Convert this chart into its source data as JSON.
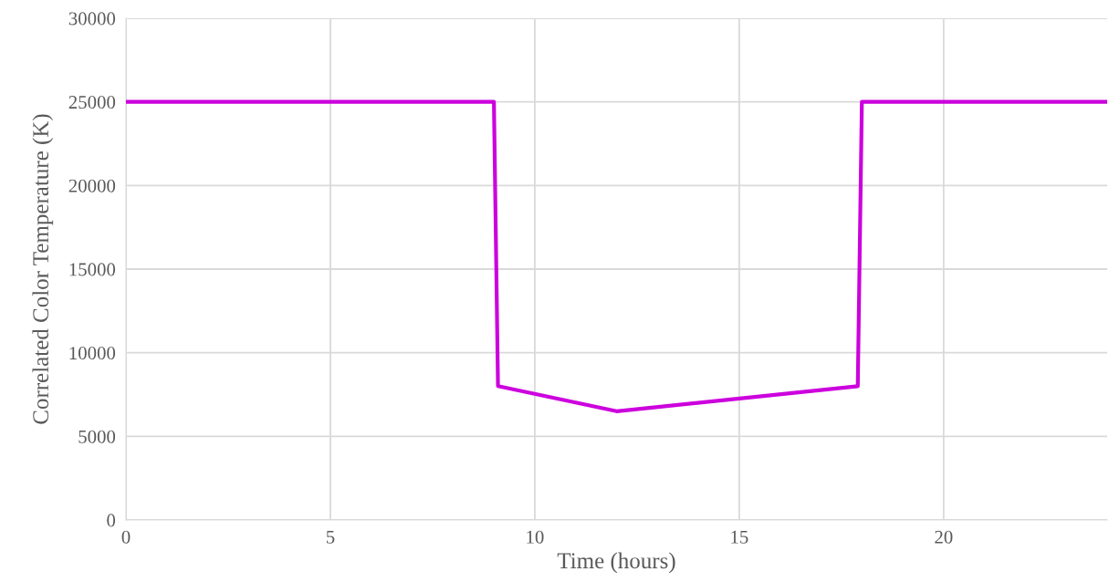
{
  "chart_data": {
    "type": "line",
    "xlabel": "Time (hours)",
    "ylabel": "Correlated Color Temperature (K)",
    "series": [
      {
        "color": "#cc00dd",
        "x": [
          0,
          9,
          9.1,
          12,
          17.9,
          18,
          24
        ],
        "values": [
          25000,
          25000,
          8000,
          6500,
          8000,
          25000,
          25000
        ]
      }
    ],
    "xlim": [
      0,
      24
    ],
    "xticks": [
      0,
      5,
      10,
      15,
      20
    ],
    "ylim": [
      0,
      30000
    ],
    "yticks": [
      0,
      5000,
      10000,
      15000,
      20000,
      25000,
      30000
    ],
    "grid": true,
    "line_style": "solid",
    "marker": "none"
  }
}
